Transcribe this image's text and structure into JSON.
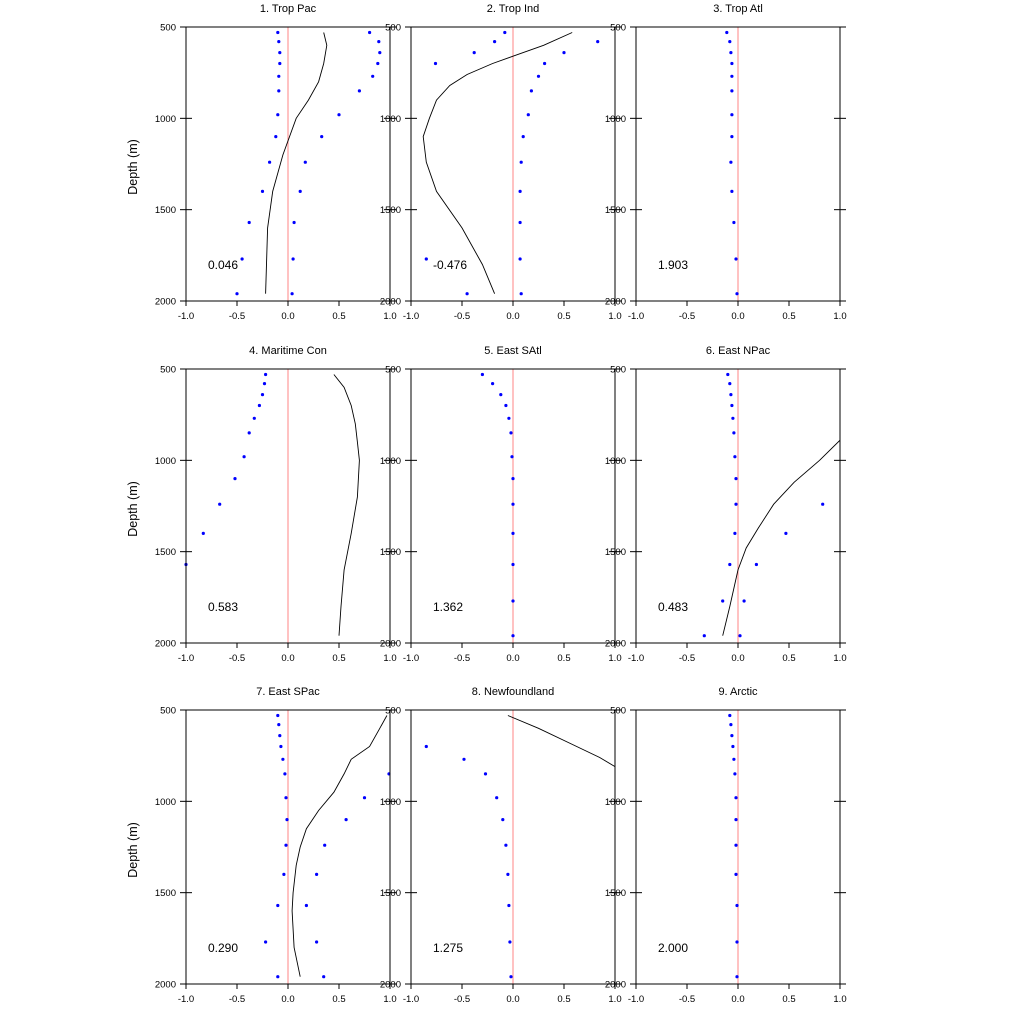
{
  "figure": {
    "ylabel": "Depth (m)"
  },
  "axes": {
    "xlim": [
      -1.0,
      1.0
    ],
    "ylim": [
      500,
      2000
    ],
    "y_inverted": true,
    "x_tick_labels": [
      "-1.0",
      "-0.5",
      "0.0",
      "0.5",
      "1.0"
    ],
    "x_tick_values": [
      -1.0,
      -0.5,
      0.0,
      0.5,
      1.0
    ],
    "y_tick_labels": [
      "500",
      "1000",
      "1500",
      "2000"
    ],
    "y_tick_values": [
      500,
      1000,
      1500,
      2000
    ],
    "grid": false
  },
  "colors": {
    "zero_line": "#ff9999",
    "points": "#0000ff",
    "line": "#000000",
    "axes": "#000000"
  },
  "chart_data": [
    {
      "type": "line",
      "title": "1. Trop Pac",
      "annotation": "0.046",
      "line": {
        "x": [
          0.35,
          0.38,
          0.35,
          0.3,
          0.2,
          0.08,
          -0.05,
          -0.15,
          -0.2,
          -0.22
        ],
        "y": [
          530,
          600,
          700,
          800,
          900,
          1000,
          1200,
          1400,
          1600,
          1960
        ]
      },
      "points_left": {
        "x": [
          -0.1,
          -0.09,
          -0.08,
          -0.08,
          -0.09,
          -0.09,
          -0.1,
          -0.12,
          -0.18,
          -0.25,
          -0.38,
          -0.45,
          -0.5
        ],
        "y": [
          530,
          580,
          640,
          700,
          770,
          850,
          980,
          1100,
          1240,
          1400,
          1570,
          1770,
          1960
        ]
      },
      "points_right": {
        "x": [
          0.8,
          0.89,
          0.9,
          0.88,
          0.83,
          0.7,
          0.5,
          0.33,
          0.17,
          0.12,
          0.06,
          0.05,
          0.04
        ],
        "y": [
          530,
          580,
          640,
          700,
          770,
          850,
          980,
          1100,
          1240,
          1400,
          1570,
          1770,
          1960
        ]
      }
    },
    {
      "type": "line",
      "title": "2. Trop Ind",
      "annotation": "-0.476",
      "line": {
        "x": [
          0.58,
          0.3,
          0.0,
          -0.2,
          -0.45,
          -0.62,
          -0.75,
          -0.82,
          -0.88,
          -0.85,
          -0.75,
          -0.5,
          -0.3,
          -0.18
        ],
        "y": [
          530,
          600,
          660,
          700,
          760,
          820,
          900,
          1000,
          1100,
          1240,
          1400,
          1600,
          1800,
          1960
        ]
      },
      "points_left": {
        "x": [
          -0.08,
          -0.18,
          -0.38,
          -0.76,
          -0.85,
          -0.45
        ],
        "y": [
          530,
          580,
          640,
          700,
          1770,
          1960
        ]
      },
      "points_right": {
        "x": [
          0.83,
          0.5,
          0.31,
          0.25,
          0.18,
          0.15,
          0.1,
          0.08,
          0.07,
          0.07,
          0.07,
          0.08
        ],
        "y": [
          580,
          640,
          700,
          770,
          850,
          980,
          1100,
          1240,
          1400,
          1570,
          1770,
          1960
        ]
      }
    },
    {
      "type": "line",
      "title": "3. Trop Atl",
      "annotation": "1.903",
      "line": {
        "x": [],
        "y": []
      },
      "points_left": {
        "x": [
          -0.11,
          -0.08,
          -0.07,
          -0.06,
          -0.06,
          -0.06,
          -0.06,
          -0.06,
          -0.07,
          -0.06,
          -0.04,
          -0.02,
          -0.01
        ],
        "y": [
          530,
          580,
          640,
          700,
          770,
          850,
          980,
          1100,
          1240,
          1400,
          1570,
          1770,
          1960
        ]
      },
      "points_right": {
        "x": [],
        "y": []
      }
    },
    {
      "type": "line",
      "title": "4. Maritime Con",
      "annotation": "0.583",
      "line": {
        "x": [
          0.45,
          0.55,
          0.62,
          0.66,
          0.68,
          0.7,
          0.68,
          0.62,
          0.55,
          0.52,
          0.5
        ],
        "y": [
          530,
          600,
          700,
          800,
          900,
          1000,
          1200,
          1400,
          1600,
          1800,
          1960
        ]
      },
      "points_left": {
        "x": [
          -0.22,
          -0.23,
          -0.25,
          -0.28,
          -0.33,
          -0.38,
          -0.43,
          -0.52,
          -0.67,
          -0.83,
          -1.0
        ],
        "y": [
          530,
          580,
          640,
          700,
          770,
          850,
          980,
          1100,
          1240,
          1400,
          1570
        ]
      },
      "points_right": {
        "x": [],
        "y": []
      }
    },
    {
      "type": "line",
      "title": "5. East SAtl",
      "annotation": "1.362",
      "line": {
        "x": [],
        "y": []
      },
      "points_left": {
        "x": [
          -0.3,
          -0.2,
          -0.12,
          -0.07,
          -0.04,
          -0.02,
          -0.01,
          0.0,
          0.0,
          0.0,
          0.0,
          0.0,
          0.0
        ],
        "y": [
          530,
          580,
          640,
          700,
          770,
          850,
          980,
          1100,
          1240,
          1400,
          1570,
          1770,
          1960
        ]
      },
      "points_right": {
        "x": [],
        "y": []
      }
    },
    {
      "type": "line",
      "title": "6. East NPac",
      "annotation": "0.483",
      "line": {
        "x": [
          1.0,
          0.8,
          0.55,
          0.35,
          0.2,
          0.08,
          0.0,
          -0.08,
          -0.15
        ],
        "y": [
          890,
          1000,
          1120,
          1240,
          1370,
          1480,
          1600,
          1800,
          1960
        ]
      },
      "points_left": {
        "x": [
          -0.1,
          -0.08,
          -0.07,
          -0.06,
          -0.05,
          -0.04,
          -0.03,
          -0.02,
          -0.02,
          -0.03,
          -0.08,
          -0.15,
          -0.33
        ],
        "y": [
          530,
          580,
          640,
          700,
          770,
          850,
          980,
          1100,
          1240,
          1400,
          1570,
          1770,
          1960
        ]
      },
      "points_right": {
        "x": [
          0.83,
          0.47,
          0.18,
          0.06,
          0.02
        ],
        "y": [
          1240,
          1400,
          1570,
          1770,
          1960
        ]
      }
    },
    {
      "type": "line",
      "title": "7. East SPac",
      "annotation": "0.290",
      "line": {
        "x": [
          0.97,
          0.9,
          0.8,
          0.62,
          0.55,
          0.45,
          0.3,
          0.18,
          0.12,
          0.08,
          0.05,
          0.04,
          0.06,
          0.12
        ],
        "y": [
          530,
          600,
          700,
          770,
          850,
          950,
          1050,
          1150,
          1250,
          1350,
          1500,
          1600,
          1800,
          1960
        ]
      },
      "points_left": {
        "x": [
          -0.1,
          -0.09,
          -0.08,
          -0.07,
          -0.05,
          -0.03,
          -0.02,
          -0.01,
          -0.02,
          -0.04,
          -0.1,
          -0.22,
          -0.1
        ],
        "y": [
          530,
          580,
          640,
          700,
          770,
          850,
          980,
          1100,
          1240,
          1400,
          1570,
          1770,
          1960
        ]
      },
      "points_right": {
        "x": [
          0.99,
          0.75,
          0.57,
          0.36,
          0.28,
          0.18,
          0.28,
          0.35
        ],
        "y": [
          850,
          980,
          1100,
          1240,
          1400,
          1570,
          1770,
          1960
        ]
      }
    },
    {
      "type": "line",
      "title": "8. Newfoundland",
      "annotation": "1.275",
      "line": {
        "x": [
          -0.05,
          0.25,
          0.55,
          0.85,
          1.0
        ],
        "y": [
          530,
          600,
          680,
          760,
          810
        ]
      },
      "points_left": {
        "x": [
          -0.85,
          -0.48,
          -0.27,
          -0.16,
          -0.1,
          -0.07,
          -0.05,
          -0.04,
          -0.03,
          -0.02
        ],
        "y": [
          700,
          770,
          850,
          980,
          1100,
          1240,
          1400,
          1570,
          1770,
          1960
        ]
      },
      "points_right": {
        "x": [],
        "y": []
      }
    },
    {
      "type": "line",
      "title": "9. Arctic",
      "annotation": "2.000",
      "line": {
        "x": [],
        "y": []
      },
      "points_left": {
        "x": [
          -0.08,
          -0.07,
          -0.06,
          -0.05,
          -0.04,
          -0.03,
          -0.02,
          -0.02,
          -0.02,
          -0.02,
          -0.01,
          -0.01,
          -0.01
        ],
        "y": [
          530,
          580,
          640,
          700,
          770,
          850,
          980,
          1100,
          1240,
          1400,
          1570,
          1770,
          1960
        ]
      },
      "points_right": {
        "x": [],
        "y": []
      }
    }
  ]
}
